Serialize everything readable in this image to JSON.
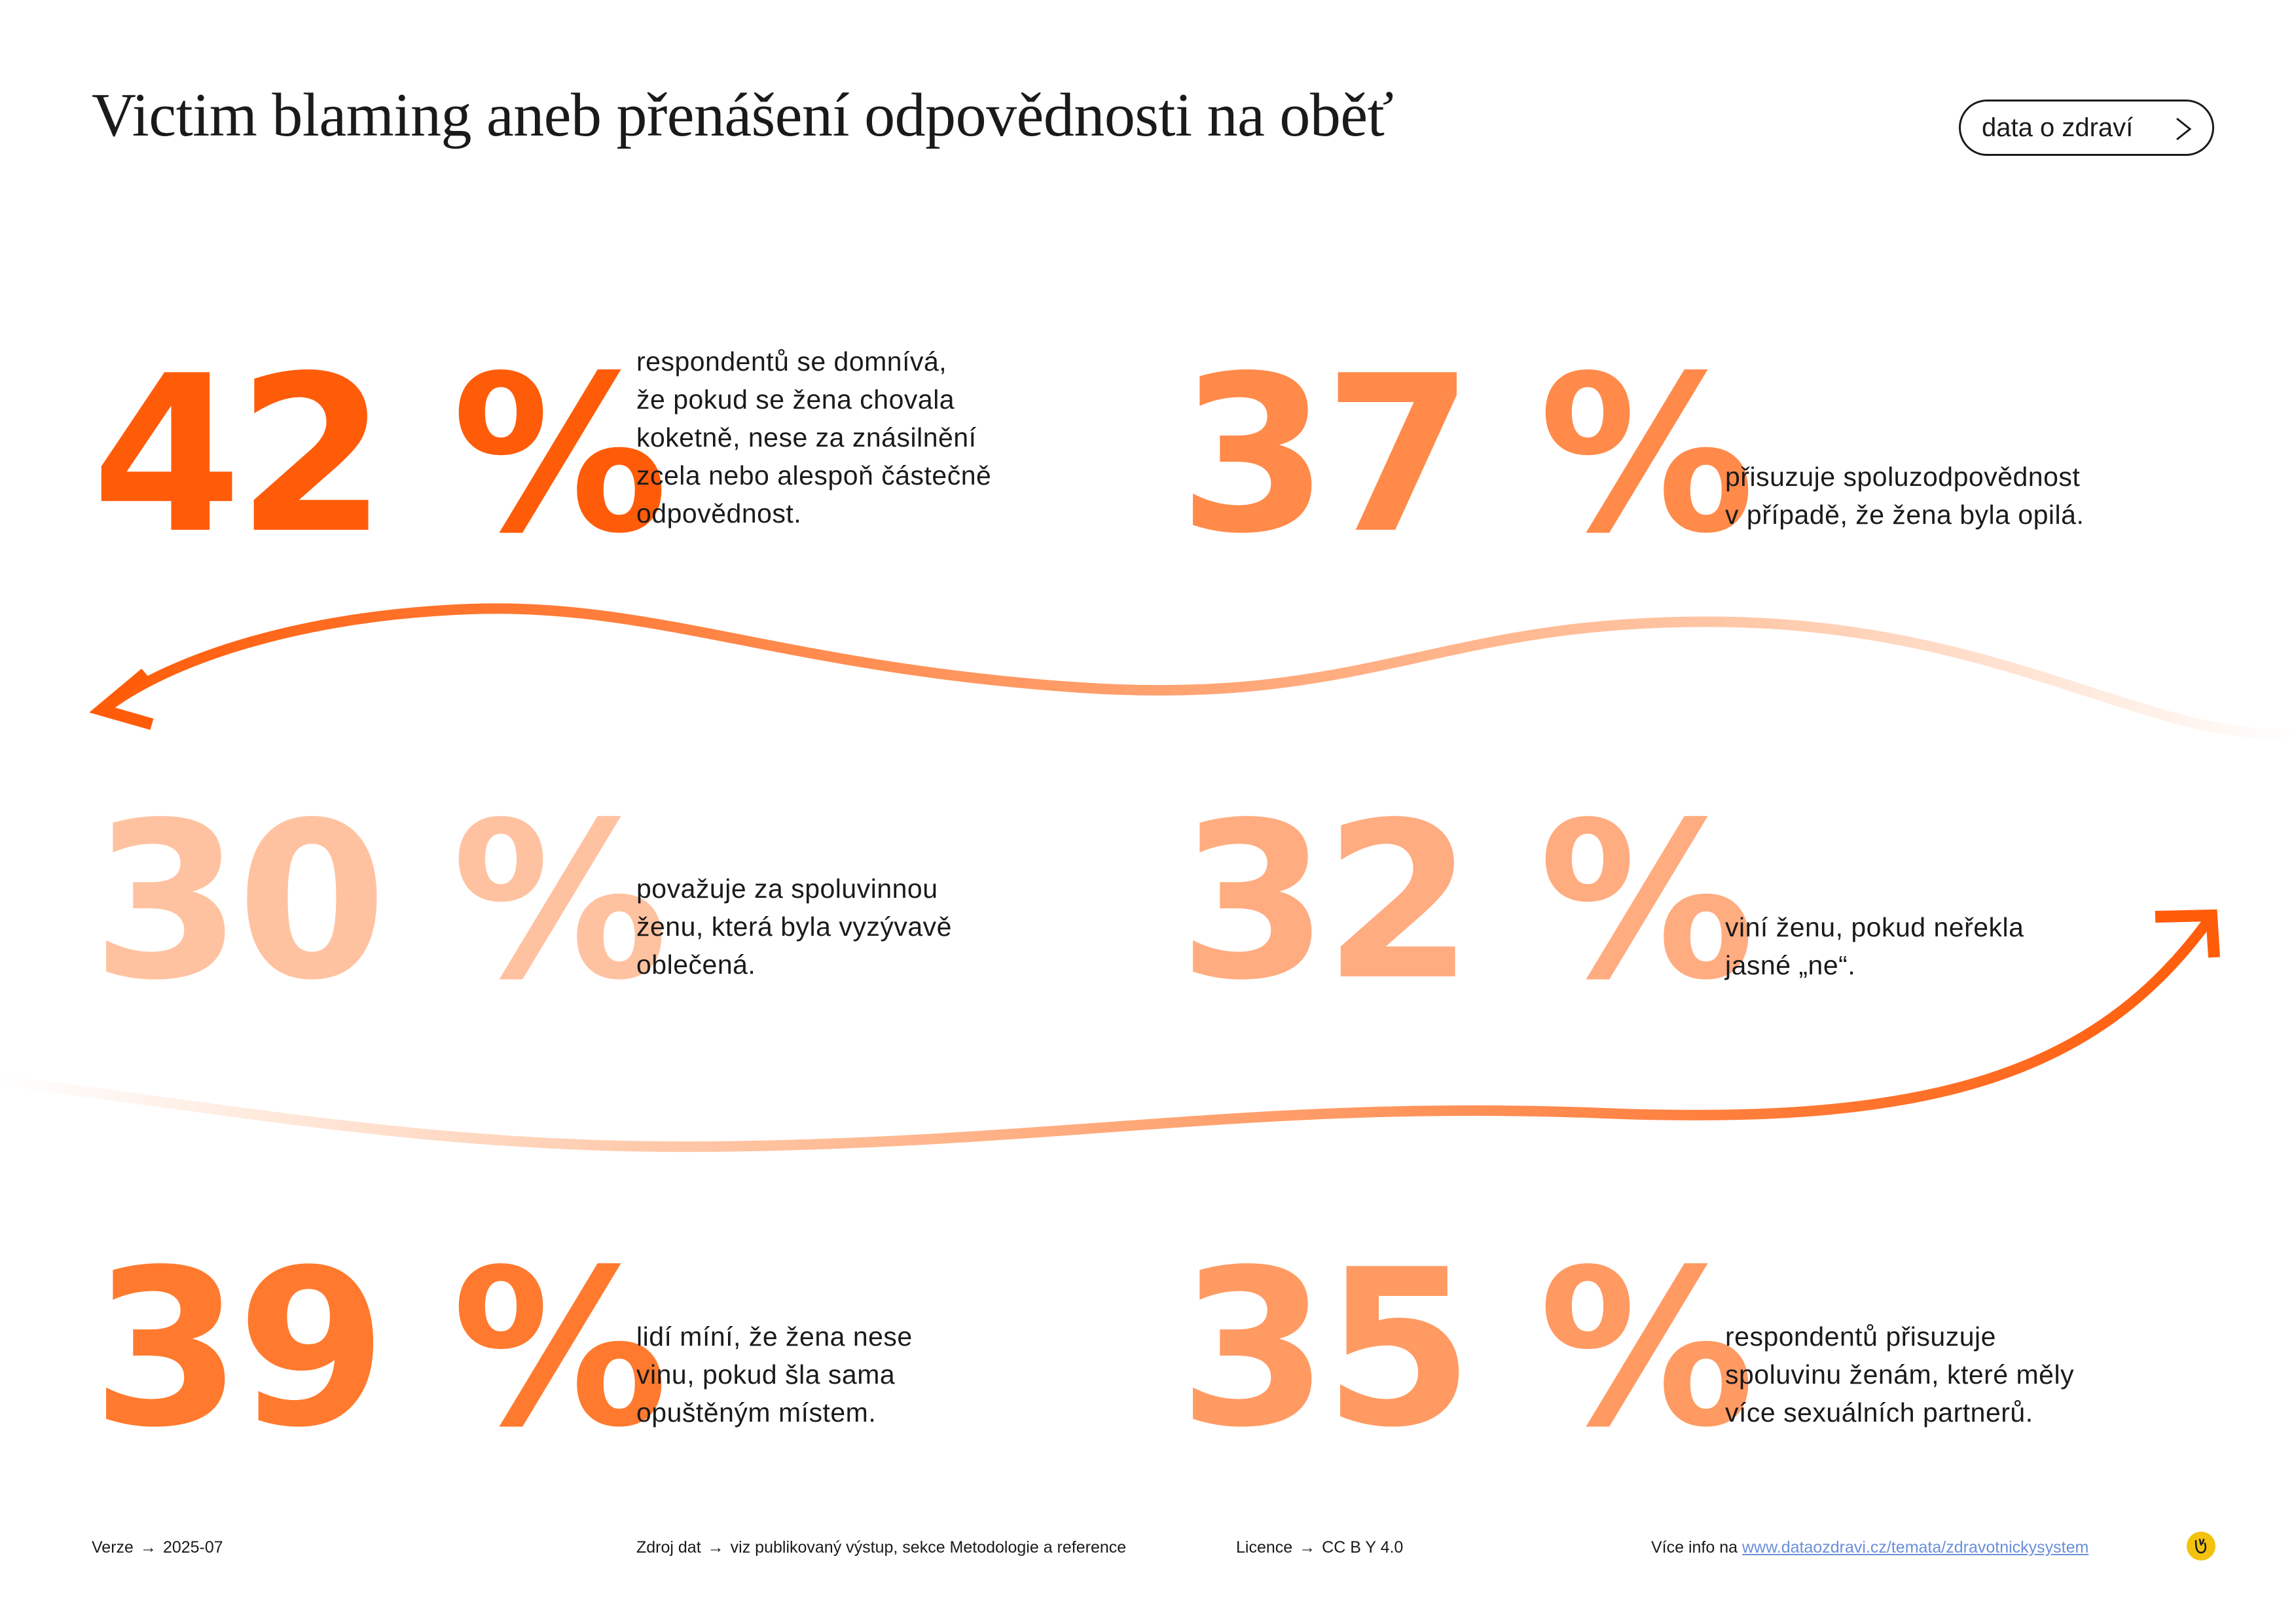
{
  "header": {
    "title": "Victim blaming aneb přenášení odpovědnosti na oběť",
    "nav_button_label": "data o zdraví"
  },
  "stats": [
    {
      "value": "42 %",
      "color": "#ff5c0a",
      "lines": [
        "respondentů se domnívá,",
        "že pokud se žena chovala",
        "koketně, nese za znásilnění",
        "zcela nebo alespoň částečně",
        "odpovědnost."
      ]
    },
    {
      "value": "37 %",
      "color": "#ff8a4a",
      "lines": [
        "přisuzuje spoluzodpovědnost",
        "v případě, že žena byla opilá."
      ]
    },
    {
      "value": "30 %",
      "color": "#ffc2a0",
      "lines": [
        "považuje za spoluvinnou",
        "ženu, která byla vyzývavě",
        "oblečená."
      ]
    },
    {
      "value": "32 %",
      "color": "#ffac80",
      "lines": [
        "viní ženu, pokud neřekla",
        "jasné „ne“."
      ]
    },
    {
      "value": "39 %",
      "color": "#ff7a2e",
      "lines": [
        "lidí míní, že žena nese",
        "vinu, pokud šla sama",
        "opuštěným místem."
      ]
    },
    {
      "value": "35 %",
      "color": "#ff9a62",
      "lines": [
        "respondentů přisuzuje",
        "spoluvinu ženám, které měly",
        "více sexuálních partnerů."
      ]
    }
  ],
  "colors": {
    "arrow_strong": "#ff5c0a",
    "arrow_light": "#ffe6d6",
    "link": "#6a8fd8",
    "logo": "#f2c20f"
  },
  "footer": {
    "version_label": "Verze",
    "version_value": "2025-07",
    "source_label": "Zdroj dat",
    "source_value": "viz publikovaný výstup, sekce Metodologie a reference",
    "license_label": "Licence",
    "license_value": "CC B Y 4.0",
    "more_label": "Více info na",
    "more_link": "www.dataozdravi.cz/temata/zdravotnickysystem",
    "arrow_glyph": "→"
  },
  "icons": {
    "nav_chevron": "chevron-right-icon",
    "logo": "logo-icon"
  }
}
